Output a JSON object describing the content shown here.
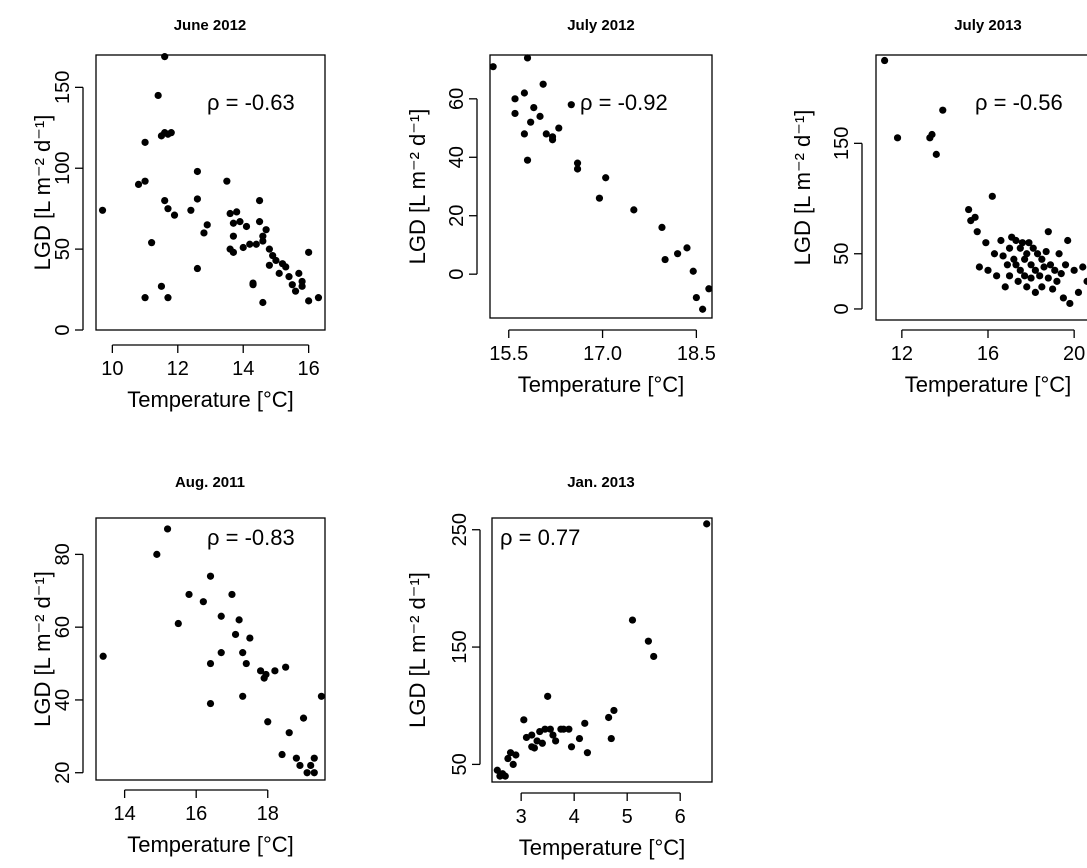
{
  "chart_data": [
    {
      "type": "scatter",
      "title": "June 2012",
      "xlabel": "Temperature [°C]",
      "ylabel": "LGD [L m⁻² d⁻¹]",
      "annotation": "ρ = -0.63",
      "xlim": [
        9.5,
        16.5
      ],
      "ylim": [
        0,
        170
      ],
      "xticks": [
        10,
        12,
        14,
        16
      ],
      "xtick_labels": [
        "10",
        "12",
        "14",
        "16"
      ],
      "yticks": [
        0,
        50,
        100,
        150
      ],
      "ytick_labels": [
        "0",
        "50",
        "100",
        "150"
      ],
      "points": [
        [
          9.7,
          74
        ],
        [
          10.8,
          90
        ],
        [
          11.0,
          116
        ],
        [
          11.0,
          92
        ],
        [
          11.0,
          20
        ],
        [
          11.2,
          54
        ],
        [
          11.4,
          145
        ],
        [
          11.5,
          120
        ],
        [
          11.5,
          27
        ],
        [
          11.6,
          169
        ],
        [
          11.6,
          80
        ],
        [
          11.6,
          122
        ],
        [
          11.7,
          121
        ],
        [
          11.7,
          75
        ],
        [
          11.7,
          20
        ],
        [
          11.8,
          122
        ],
        [
          11.9,
          71
        ],
        [
          12.4,
          74
        ],
        [
          12.6,
          81
        ],
        [
          12.6,
          38
        ],
        [
          12.6,
          98
        ],
        [
          12.8,
          60
        ],
        [
          12.9,
          65
        ],
        [
          13.5,
          92
        ],
        [
          13.6,
          72
        ],
        [
          13.6,
          50
        ],
        [
          13.7,
          66
        ],
        [
          13.7,
          58
        ],
        [
          13.7,
          48
        ],
        [
          13.8,
          73
        ],
        [
          13.9,
          67
        ],
        [
          14.0,
          51
        ],
        [
          14.1,
          64
        ],
        [
          14.2,
          53
        ],
        [
          14.3,
          29
        ],
        [
          14.3,
          28
        ],
        [
          14.4,
          53
        ],
        [
          14.5,
          80
        ],
        [
          14.5,
          67
        ],
        [
          14.6,
          55
        ],
        [
          14.6,
          58
        ],
        [
          14.6,
          17
        ],
        [
          14.7,
          62
        ],
        [
          14.8,
          40
        ],
        [
          14.8,
          50
        ],
        [
          14.9,
          46
        ],
        [
          15.0,
          43
        ],
        [
          15.1,
          35
        ],
        [
          15.2,
          41
        ],
        [
          15.3,
          39
        ],
        [
          15.4,
          33
        ],
        [
          15.5,
          28
        ],
        [
          15.6,
          24
        ],
        [
          15.7,
          35
        ],
        [
          15.8,
          30
        ],
        [
          15.8,
          27
        ],
        [
          16.0,
          18
        ],
        [
          16.0,
          48
        ],
        [
          16.3,
          20
        ]
      ]
    },
    {
      "type": "scatter",
      "title": "July 2012",
      "xlabel": "Temperature [°C]",
      "ylabel": "LGD [L m⁻² d⁻¹]",
      "annotation": "ρ = -0.92",
      "xlim": [
        15.2,
        18.75
      ],
      "ylim": [
        -15,
        75
      ],
      "xticks": [
        15.5,
        17.0,
        18.5
      ],
      "xtick_labels": [
        "15.5",
        "17.0",
        "18.5"
      ],
      "yticks": [
        0,
        20,
        40,
        60
      ],
      "ytick_labels": [
        "0",
        "20",
        "40",
        "60"
      ],
      "points": [
        [
          15.25,
          71
        ],
        [
          15.6,
          60
        ],
        [
          15.6,
          55
        ],
        [
          15.75,
          62
        ],
        [
          15.75,
          48
        ],
        [
          15.8,
          39
        ],
        [
          15.85,
          52
        ],
        [
          15.9,
          57
        ],
        [
          16.0,
          54
        ],
        [
          16.05,
          65
        ],
        [
          16.1,
          48
        ],
        [
          16.2,
          46
        ],
        [
          16.2,
          47
        ],
        [
          16.3,
          50
        ],
        [
          16.5,
          58
        ],
        [
          16.6,
          38
        ],
        [
          16.6,
          36
        ],
        [
          16.95,
          26
        ],
        [
          17.05,
          33
        ],
        [
          17.5,
          22
        ],
        [
          17.95,
          16
        ],
        [
          18.0,
          5
        ],
        [
          18.2,
          7
        ],
        [
          18.35,
          9
        ],
        [
          18.45,
          1
        ],
        [
          18.5,
          -8
        ],
        [
          18.6,
          -12
        ],
        [
          18.7,
          -5
        ],
        [
          15.8,
          74
        ]
      ]
    },
    {
      "type": "scatter",
      "title": "July 2013",
      "xlabel": "Temperature [°C]",
      "ylabel": "LGD [L m⁻² d⁻¹]",
      "annotation": "ρ = -0.56",
      "xlim": [
        10.8,
        21.2
      ],
      "ylim": [
        -10,
        230
      ],
      "xticks": [
        12,
        16,
        20
      ],
      "xtick_labels": [
        "12",
        "16",
        "20"
      ],
      "yticks": [
        0,
        50,
        150
      ],
      "ytick_labels": [
        "0",
        "50",
        "150"
      ],
      "points": [
        [
          11.2,
          225
        ],
        [
          11.8,
          155
        ],
        [
          13.3,
          155
        ],
        [
          13.4,
          158
        ],
        [
          13.6,
          140
        ],
        [
          13.9,
          180
        ],
        [
          15.1,
          90
        ],
        [
          15.2,
          80
        ],
        [
          15.4,
          83
        ],
        [
          15.5,
          70
        ],
        [
          15.6,
          38
        ],
        [
          15.9,
          60
        ],
        [
          16.0,
          35
        ],
        [
          16.2,
          102
        ],
        [
          16.3,
          50
        ],
        [
          16.4,
          30
        ],
        [
          16.6,
          62
        ],
        [
          16.7,
          48
        ],
        [
          16.8,
          20
        ],
        [
          16.9,
          40
        ],
        [
          17.0,
          55
        ],
        [
          17.0,
          30
        ],
        [
          17.1,
          65
        ],
        [
          17.2,
          45
        ],
        [
          17.3,
          62
        ],
        [
          17.3,
          40
        ],
        [
          17.4,
          25
        ],
        [
          17.5,
          55
        ],
        [
          17.5,
          35
        ],
        [
          17.6,
          60
        ],
        [
          17.7,
          45
        ],
        [
          17.7,
          30
        ],
        [
          17.8,
          50
        ],
        [
          17.8,
          20
        ],
        [
          17.9,
          60
        ],
        [
          18.0,
          40
        ],
        [
          18.0,
          28
        ],
        [
          18.1,
          55
        ],
        [
          18.2,
          35
        ],
        [
          18.2,
          15
        ],
        [
          18.3,
          50
        ],
        [
          18.4,
          30
        ],
        [
          18.5,
          45
        ],
        [
          18.5,
          20
        ],
        [
          18.6,
          38
        ],
        [
          18.7,
          52
        ],
        [
          18.8,
          28
        ],
        [
          18.8,
          70
        ],
        [
          18.9,
          40
        ],
        [
          19.0,
          18
        ],
        [
          19.1,
          35
        ],
        [
          19.2,
          25
        ],
        [
          19.3,
          50
        ],
        [
          19.4,
          32
        ],
        [
          19.5,
          10
        ],
        [
          19.6,
          40
        ],
        [
          19.7,
          62
        ],
        [
          19.8,
          5
        ],
        [
          20.0,
          35
        ],
        [
          20.2,
          15
        ],
        [
          20.4,
          38
        ],
        [
          20.6,
          25
        ],
        [
          20.8,
          10
        ],
        [
          21.0,
          45
        ]
      ]
    },
    {
      "type": "scatter",
      "title": "Aug. 2011",
      "xlabel": "Temperature [°C]",
      "ylabel": "LGD [L m⁻² d⁻¹]",
      "annotation": "ρ = -0.83",
      "xlim": [
        13.2,
        19.6
      ],
      "ylim": [
        18,
        90
      ],
      "xticks": [
        14,
        16,
        18
      ],
      "xtick_labels": [
        "14",
        "16",
        "18"
      ],
      "yticks": [
        20,
        40,
        60,
        80
      ],
      "ytick_labels": [
        "20",
        "40",
        "60",
        "80"
      ],
      "points": [
        [
          13.4,
          52
        ],
        [
          14.9,
          80
        ],
        [
          15.2,
          87
        ],
        [
          15.5,
          61
        ],
        [
          15.8,
          69
        ],
        [
          16.2,
          67
        ],
        [
          16.4,
          74
        ],
        [
          16.4,
          50
        ],
        [
          16.4,
          39
        ],
        [
          16.7,
          53
        ],
        [
          16.7,
          63
        ],
        [
          17.0,
          69
        ],
        [
          17.1,
          58
        ],
        [
          17.2,
          62
        ],
        [
          17.3,
          53
        ],
        [
          17.3,
          41
        ],
        [
          17.4,
          50
        ],
        [
          17.5,
          57
        ],
        [
          17.8,
          48
        ],
        [
          17.9,
          46
        ],
        [
          17.95,
          47
        ],
        [
          18.0,
          34
        ],
        [
          18.2,
          48
        ],
        [
          18.4,
          25
        ],
        [
          18.5,
          49
        ],
        [
          18.6,
          31
        ],
        [
          18.8,
          24
        ],
        [
          18.9,
          22
        ],
        [
          19.0,
          35
        ],
        [
          19.1,
          20
        ],
        [
          19.2,
          22
        ],
        [
          19.3,
          20
        ],
        [
          19.3,
          24
        ],
        [
          19.5,
          41
        ]
      ]
    },
    {
      "type": "scatter",
      "title": "Jan. 2013",
      "xlabel": "Temperature [°C]",
      "ylabel": "LGD [L m⁻² d⁻¹]",
      "annotation": "ρ = 0.77",
      "xlim": [
        2.45,
        6.6
      ],
      "ylim": [
        35,
        260
      ],
      "xticks": [
        3,
        4,
        5,
        6
      ],
      "xtick_labels": [
        "3",
        "4",
        "5",
        "6"
      ],
      "yticks": [
        50,
        150,
        250
      ],
      "ytick_labels": [
        "50",
        "150",
        "250"
      ],
      "points": [
        [
          2.55,
          45
        ],
        [
          2.6,
          40
        ],
        [
          2.65,
          42
        ],
        [
          2.7,
          40
        ],
        [
          2.75,
          55
        ],
        [
          2.8,
          60
        ],
        [
          2.85,
          50
        ],
        [
          2.9,
          58
        ],
        [
          3.05,
          88
        ],
        [
          3.1,
          73
        ],
        [
          3.2,
          75
        ],
        [
          3.2,
          65
        ],
        [
          3.25,
          64
        ],
        [
          3.3,
          70
        ],
        [
          3.35,
          78
        ],
        [
          3.4,
          68
        ],
        [
          3.45,
          80
        ],
        [
          3.5,
          108
        ],
        [
          3.55,
          80
        ],
        [
          3.6,
          75
        ],
        [
          3.65,
          70
        ],
        [
          3.75,
          80
        ],
        [
          3.8,
          80
        ],
        [
          3.9,
          80
        ],
        [
          3.95,
          65
        ],
        [
          4.1,
          72
        ],
        [
          4.2,
          85
        ],
        [
          4.25,
          60
        ],
        [
          4.65,
          90
        ],
        [
          4.7,
          72
        ],
        [
          4.75,
          96
        ],
        [
          5.1,
          173
        ],
        [
          5.4,
          155
        ],
        [
          5.5,
          142
        ],
        [
          6.5,
          255
        ]
      ]
    }
  ]
}
